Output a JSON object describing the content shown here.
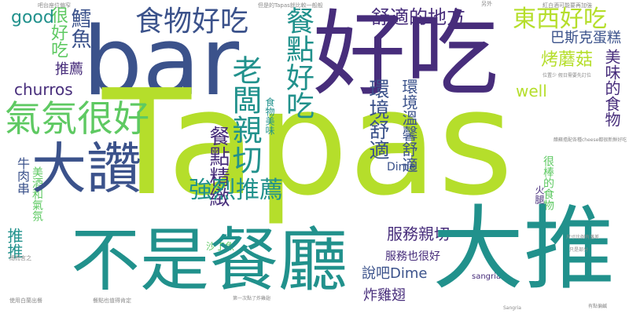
{
  "palette": {
    "background": "#ffffff",
    "purple": "#472d7b",
    "teal": "#21918c",
    "green": "#5ec962",
    "lime": "#b5de2b",
    "blue": "#3b528b"
  },
  "words": {
    "tapas": "Tapas",
    "bar": "bar",
    "haochi": "好吃",
    "dazan": "大讚",
    "dianchi_canting": "不是餐廳",
    "datui": "大推",
    "shiwu_haochi": "食物好吃",
    "qifen_henhao": "氣氛很好",
    "shushi_de_difang": "舒適的地方",
    "dongxi_haochi": "東西好吃",
    "laoban_qinqie": "老闆親切",
    "qianglie_tuijian": "強烈推薦",
    "canjian_haochi": "餐點好吃",
    "hen_haochi": "很好吃",
    "good": "good",
    "churros": "churros",
    "tuijian": "推薦",
    "xueyu": "鱈魚",
    "basike": "巴斯克蛋糕",
    "kao_mogu": "烤蘑菇",
    "meiwei_de_shiwu": "美味的食物",
    "shiwu_meiwei": "食物美味",
    "well": "well",
    "huanjing_shushi": "環境舒適",
    "huanjing_wenxin": "環境溫馨舒適",
    "canjian_jingzhi": "餐點精緻",
    "fuwu_qinqie": "服務親切",
    "fuwu_yehenhao": "服務也很好",
    "shuoba_dime": "說吧Dime",
    "dime": "Dime",
    "zha_jichi": "炸雞翅",
    "niurou_chuan": "牛肉串",
    "meijiu": "美酒和氣氛",
    "tuitui": "推推",
    "shading_yu": "沙丁魚",
    "hen_bang": "很棒的食物",
    "huotui": "火腿",
    "sangria": "sangria"
  }
}
